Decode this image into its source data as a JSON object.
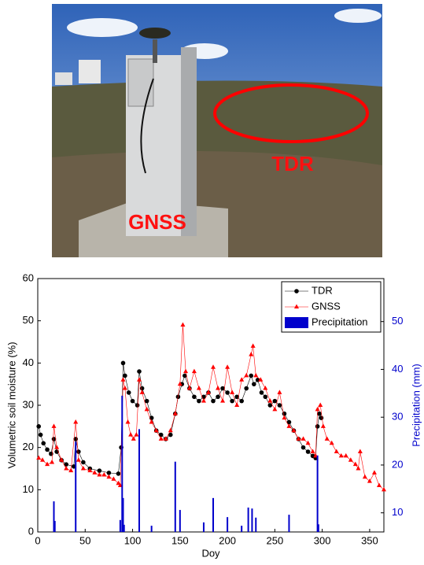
{
  "photo": {
    "labels": [
      "TDR",
      "GNSS"
    ]
  },
  "chart_data": {
    "type": "line",
    "xlabel": "Doy",
    "ylabel": "Volumetric soil moisture (%)",
    "y2label": "Precipitation (mm)",
    "xlim": [
      0,
      365
    ],
    "xticks": [
      0,
      50,
      100,
      150,
      200,
      250,
      300,
      350
    ],
    "ylim": [
      0,
      60
    ],
    "yticks": [
      0,
      10,
      20,
      30,
      40,
      50,
      60
    ],
    "y2lim": [
      6,
      59
    ],
    "y2ticks": [
      10,
      20,
      30,
      40,
      50
    ],
    "legend": "upper right",
    "series": [
      {
        "name": "TDR",
        "color": "#000000",
        "marker": "circle",
        "x": [
          1,
          3,
          6,
          10,
          14,
          17,
          20,
          25,
          30,
          38,
          40,
          43,
          48,
          55,
          65,
          75,
          85,
          88,
          90,
          92,
          96,
          100,
          105,
          107,
          110,
          115,
          120,
          125,
          130,
          135,
          140,
          145,
          148,
          152,
          155,
          160,
          165,
          170,
          175,
          180,
          185,
          190,
          195,
          200,
          205,
          210,
          215,
          220,
          225,
          228,
          232,
          236,
          240,
          245,
          250,
          255,
          260,
          265,
          270,
          275,
          280,
          285,
          290,
          293,
          295,
          297,
          299
        ],
        "values": [
          25,
          23,
          21,
          19.5,
          18.5,
          22,
          19,
          17,
          16,
          15.5,
          22,
          19,
          16.5,
          15,
          14.5,
          14,
          13.8,
          20,
          40,
          37,
          33,
          31,
          30,
          38,
          34,
          31,
          27,
          24,
          23,
          22,
          23,
          28,
          32,
          35,
          37,
          34,
          32,
          31,
          32,
          33,
          31,
          32,
          34,
          33,
          31,
          32,
          31,
          34,
          37,
          35,
          36,
          33,
          32,
          30,
          31,
          30,
          28,
          26,
          24,
          22,
          20,
          19,
          18,
          17.5,
          25,
          28,
          27
        ]
      },
      {
        "name": "GNSS",
        "color": "#ff0000",
        "marker": "triangle",
        "x": [
          1,
          5,
          10,
          15,
          17,
          20,
          25,
          30,
          35,
          40,
          43,
          48,
          55,
          60,
          65,
          70,
          75,
          80,
          85,
          87,
          90,
          92,
          95,
          98,
          101,
          104,
          107,
          110,
          115,
          120,
          125,
          130,
          135,
          140,
          145,
          150,
          153,
          156,
          160,
          165,
          170,
          175,
          180,
          185,
          190,
          195,
          200,
          205,
          210,
          215,
          220,
          225,
          227,
          230,
          235,
          240,
          245,
          250,
          255,
          260,
          265,
          270,
          275,
          280,
          285,
          290,
          293,
          295,
          298,
          301,
          305,
          310,
          315,
          320,
          325,
          330,
          335,
          338,
          340,
          345,
          350,
          355,
          360,
          365
        ],
        "values": [
          17.5,
          17,
          16,
          16.5,
          25,
          20,
          17,
          15,
          14.5,
          26,
          17,
          15,
          14.5,
          14,
          13.5,
          13.5,
          13,
          12.5,
          11.5,
          11,
          36,
          34,
          26,
          23,
          22,
          23,
          36,
          33,
          29,
          26,
          24,
          22,
          22,
          24,
          28,
          35,
          49,
          38,
          34,
          38,
          34,
          31,
          33,
          39,
          34,
          31,
          39,
          33,
          30,
          36,
          37,
          42,
          44,
          37,
          36,
          34,
          31,
          29,
          33,
          27,
          25,
          24,
          22,
          22,
          21,
          19,
          18,
          29,
          30,
          25,
          22,
          21,
          19,
          18,
          18,
          17,
          16,
          15,
          19,
          13,
          12,
          14,
          11,
          10
        ]
      },
      {
        "name": "Precipitation",
        "color": "#0000cc",
        "marker": "bar",
        "axis": "y2",
        "x": [
          17,
          18,
          40,
          87,
          89,
          90,
          91,
          107,
          120,
          145,
          150,
          175,
          185,
          200,
          215,
          222,
          226,
          230,
          265,
          295,
          296
        ],
        "values": [
          12.4,
          8.3,
          24.9,
          8.5,
          34.5,
          13.1,
          7.5,
          27.5,
          7.3,
          20.7,
          10.6,
          8,
          13.1,
          9.1,
          7.3,
          11.1,
          10.9,
          9,
          9.6,
          22,
          7.6
        ]
      }
    ]
  }
}
